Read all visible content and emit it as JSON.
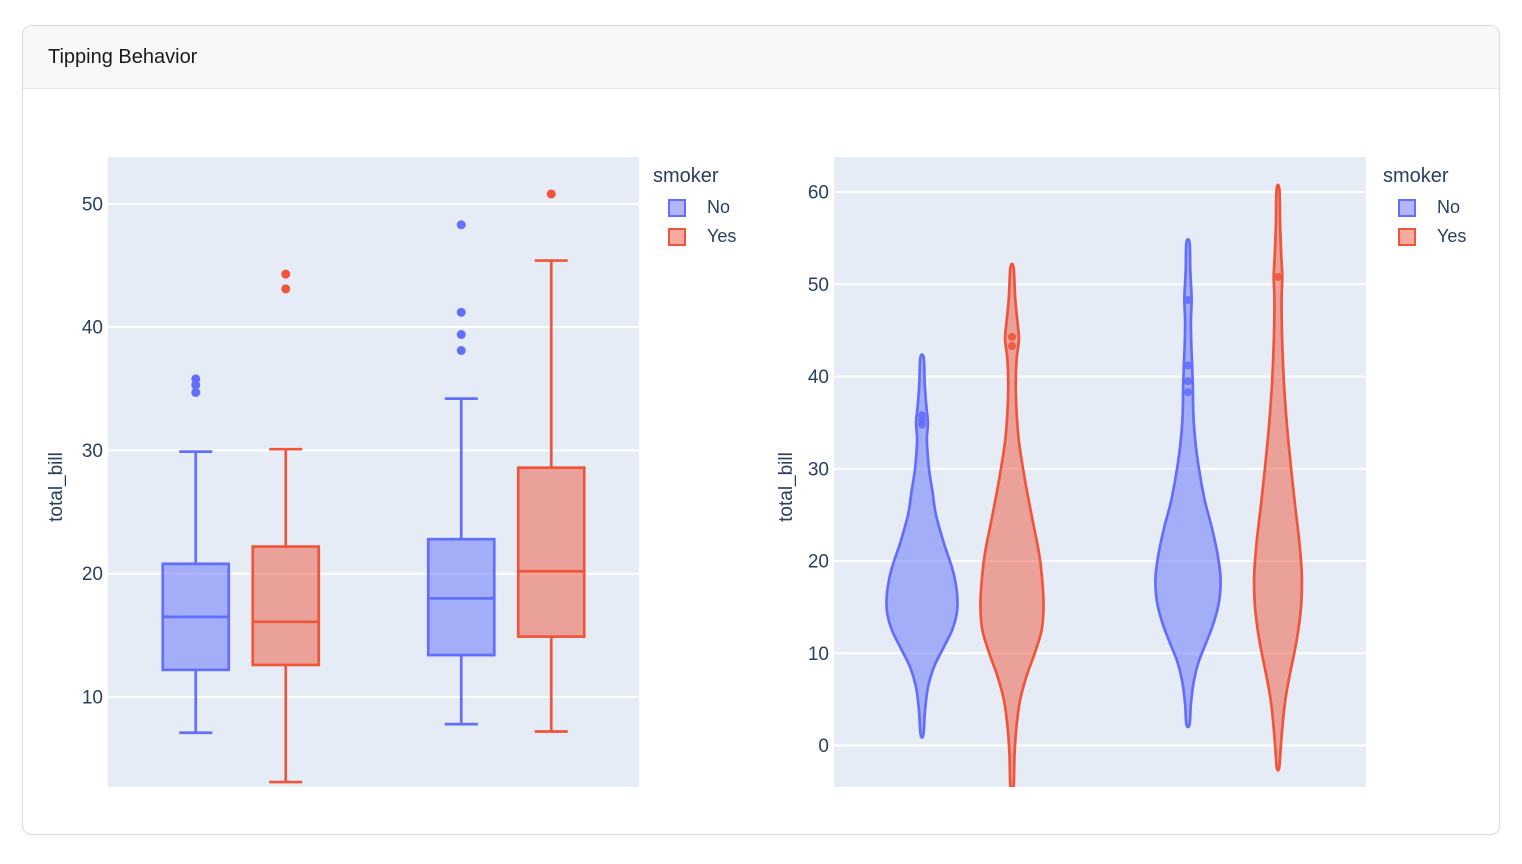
{
  "window": {
    "title": "Tipping Behavior"
  },
  "theme": {
    "color_no": "#636EFA",
    "color_yes": "#EF553B",
    "plot_bg": "#E5ECF6",
    "grid_color": "#FFFFFF",
    "axis_text_color": "#2A3F5F",
    "header_bg": "#F8F8F8",
    "card_border": "#DCDCDC"
  },
  "chart_data": [
    {
      "type": "box",
      "ylabel": "total_bill",
      "yticks": [
        10,
        20,
        30,
        40,
        50
      ],
      "ylim": [
        2.7,
        53.8
      ],
      "grid": true,
      "legend_position": "right-top",
      "legend": {
        "title": "smoker",
        "entries": [
          {
            "label": "No",
            "color": "#636EFA"
          },
          {
            "label": "Yes",
            "color": "#EF553B"
          }
        ]
      },
      "groups": [
        {
          "boxes": [
            {
              "series": "No",
              "low": 7.1,
              "q1": 12.2,
              "median": 16.5,
              "q3": 20.8,
              "high": 29.9,
              "outliers": [
                34.7,
                35.3,
                35.8
              ]
            },
            {
              "series": "Yes",
              "low": 3.1,
              "q1": 12.6,
              "median": 16.1,
              "q3": 22.2,
              "high": 30.1,
              "outliers": [
                43.1,
                44.3
              ]
            }
          ]
        },
        {
          "boxes": [
            {
              "series": "No",
              "low": 7.8,
              "q1": 13.4,
              "median": 18.0,
              "q3": 22.8,
              "high": 34.2,
              "outliers": [
                38.1,
                39.4,
                41.2,
                48.3
              ]
            },
            {
              "series": "Yes",
              "low": 7.2,
              "q1": 14.9,
              "median": 20.2,
              "q3": 28.6,
              "high": 45.4,
              "outliers": [
                50.8
              ]
            }
          ]
        }
      ]
    },
    {
      "type": "violin",
      "ylabel": "total_bill",
      "yticks": [
        0,
        10,
        20,
        30,
        40,
        50,
        60
      ],
      "ylim": [
        -4.5,
        63.8
      ],
      "grid": true,
      "legend_position": "right-top",
      "legend": {
        "title": "smoker",
        "entries": [
          {
            "label": "No",
            "color": "#636EFA"
          },
          {
            "label": "Yes",
            "color": "#EF553B"
          }
        ]
      },
      "groups": [
        {
          "violins": [
            {
              "series": "No",
              "rel_width": 1.0,
              "points": [
                34.8,
                35.3,
                35.8
              ],
              "profile": [
                [
                  42,
                  0.05
                ],
                [
                  39,
                  0.08
                ],
                [
                  36.5,
                  0.13
                ],
                [
                  35,
                  0.17
                ],
                [
                  33,
                  0.14
                ],
                [
                  30,
                  0.2
                ],
                [
                  27.5,
                  0.3
                ],
                [
                  25,
                  0.4
                ],
                [
                  22,
                  0.62
                ],
                [
                  19,
                  0.88
                ],
                [
                  16.5,
                  1.0
                ],
                [
                  14.5,
                  1.0
                ],
                [
                  12.5,
                  0.86
                ],
                [
                  10.5,
                  0.6
                ],
                [
                  8.5,
                  0.34
                ],
                [
                  6.5,
                  0.18
                ],
                [
                  4,
                  0.09
                ],
                [
                  1.2,
                  0.04
                ]
              ]
            },
            {
              "series": "Yes",
              "rel_width": 0.9,
              "points": [
                43.3,
                44.3
              ],
              "profile": [
                [
                  51.8,
                  0.05
                ],
                [
                  48.5,
                  0.1
                ],
                [
                  46,
                  0.17
                ],
                [
                  44,
                  0.22
                ],
                [
                  42,
                  0.15
                ],
                [
                  39.5,
                  0.12
                ],
                [
                  36.5,
                  0.14
                ],
                [
                  33,
                  0.22
                ],
                [
                  29,
                  0.4
                ],
                [
                  25,
                  0.62
                ],
                [
                  21,
                  0.85
                ],
                [
                  18,
                  0.96
                ],
                [
                  15,
                  1.0
                ],
                [
                  12.5,
                  0.94
                ],
                [
                  10,
                  0.72
                ],
                [
                  7.5,
                  0.46
                ],
                [
                  5,
                  0.26
                ],
                [
                  2,
                  0.14
                ],
                [
                  -1,
                  0.08
                ],
                [
                  -4.4,
                  0.05
                ]
              ]
            }
          ]
        },
        {
          "violins": [
            {
              "series": "No",
              "rel_width": 0.93,
              "points": [
                38.3,
                39.5,
                41.2,
                48.3
              ],
              "profile": [
                [
                  54.5,
                  0.05
                ],
                [
                  51.5,
                  0.07
                ],
                [
                  48.5,
                  0.11
                ],
                [
                  46,
                  0.09
                ],
                [
                  43.5,
                  0.1
                ],
                [
                  41,
                  0.13
                ],
                [
                  38.5,
                  0.15
                ],
                [
                  35.5,
                  0.17
                ],
                [
                  32.5,
                  0.24
                ],
                [
                  29.5,
                  0.36
                ],
                [
                  26.5,
                  0.52
                ],
                [
                  23.5,
                  0.74
                ],
                [
                  20.5,
                  0.92
                ],
                [
                  18,
                  1.0
                ],
                [
                  15.5,
                  0.95
                ],
                [
                  13,
                  0.76
                ],
                [
                  11,
                  0.54
                ],
                [
                  9,
                  0.32
                ],
                [
                  7,
                  0.18
                ],
                [
                  4.5,
                  0.09
                ],
                [
                  2.3,
                  0.05
                ]
              ]
            },
            {
              "series": "Yes",
              "rel_width": 0.68,
              "points": [
                50.8
              ],
              "profile": [
                [
                  60.3,
                  0.06
                ],
                [
                  56.5,
                  0.09
                ],
                [
                  53,
                  0.14
                ],
                [
                  50.8,
                  0.18
                ],
                [
                  48.5,
                  0.15
                ],
                [
                  45.5,
                  0.16
                ],
                [
                  42,
                  0.2
                ],
                [
                  38,
                  0.28
                ],
                [
                  34,
                  0.4
                ],
                [
                  30,
                  0.55
                ],
                [
                  26,
                  0.72
                ],
                [
                  22,
                  0.9
                ],
                [
                  18.5,
                  1.0
                ],
                [
                  15.5,
                  0.98
                ],
                [
                  13,
                  0.88
                ],
                [
                  10.5,
                  0.72
                ],
                [
                  8,
                  0.52
                ],
                [
                  5.5,
                  0.34
                ],
                [
                  3,
                  0.22
                ],
                [
                  0,
                  0.12
                ],
                [
                  -2.4,
                  0.05
                ]
              ]
            }
          ]
        }
      ]
    }
  ]
}
